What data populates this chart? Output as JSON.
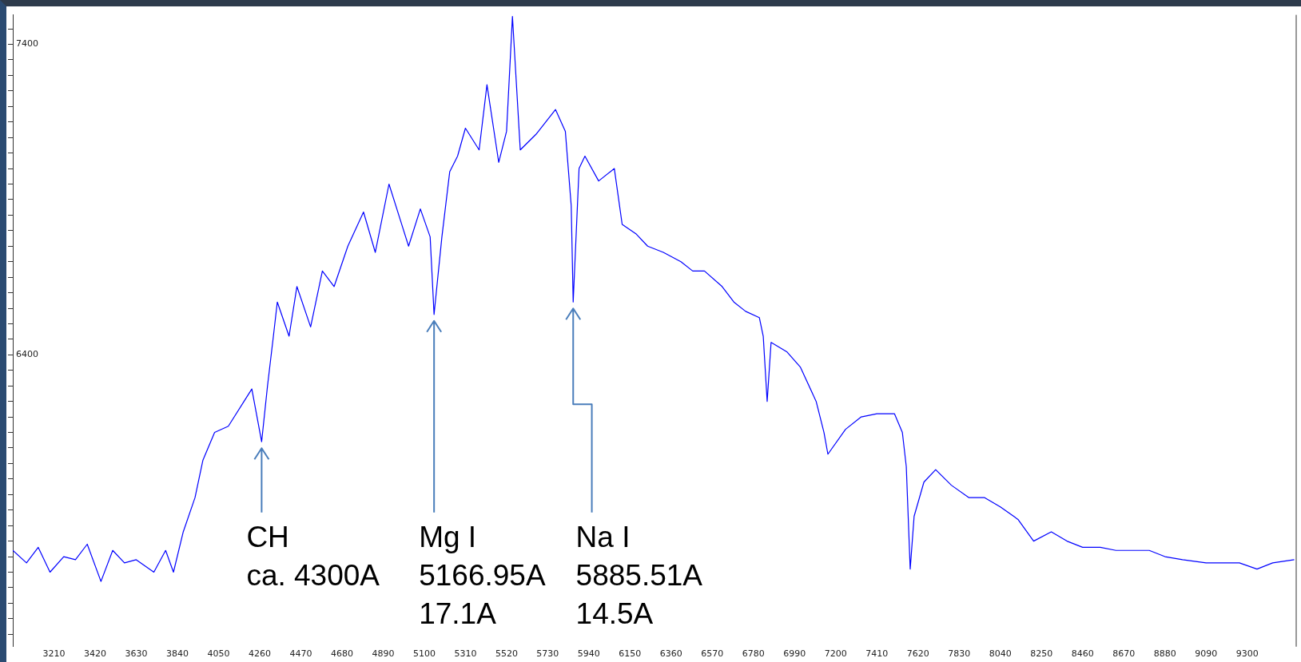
{
  "chart_data": {
    "type": "line",
    "x": [
      3000,
      3070,
      3130,
      3190,
      3260,
      3320,
      3380,
      3450,
      3510,
      3570,
      3630,
      3720,
      3780,
      3820,
      3870,
      3930,
      3970,
      4030,
      4100,
      4180,
      4220,
      4270,
      4300,
      4330,
      4350,
      4410,
      4450,
      4520,
      4580,
      4640,
      4710,
      4790,
      4850,
      4920,
      4980,
      5020,
      5080,
      5130,
      5150,
      5190,
      5230,
      5270,
      5310,
      5380,
      5420,
      5480,
      5520,
      5550,
      5590,
      5670,
      5770,
      5820,
      5850,
      5860,
      5890,
      5920,
      5990,
      6070,
      6110,
      6180,
      6240,
      6320,
      6410,
      6470,
      6530,
      6620,
      6680,
      6740,
      6810,
      6830,
      6850,
      6870,
      6950,
      7020,
      7100,
      7140,
      7160,
      7250,
      7330,
      7410,
      7500,
      7540,
      7560,
      7580,
      7600,
      7650,
      7710,
      7790,
      7880,
      7960,
      8040,
      8130,
      8210,
      8300,
      8380,
      8460,
      8550,
      8630,
      8720,
      8800,
      8880,
      8970,
      9090,
      9180,
      9260,
      9350,
      9430,
      9540
    ],
    "series": [
      {
        "color": "#0000ff",
        "values": [
          5770,
          5730,
          5780,
          5700,
          5750,
          5740,
          5790,
          5670,
          5770,
          5730,
          5740,
          5700,
          5770,
          5700,
          5830,
          5940,
          6060,
          6150,
          6170,
          6250,
          6290,
          6120,
          6300,
          6460,
          6570,
          6460,
          6620,
          6490,
          6670,
          6620,
          6750,
          6860,
          6730,
          6950,
          6830,
          6750,
          6870,
          6780,
          6530,
          6780,
          6990,
          7040,
          7130,
          7060,
          7270,
          7020,
          7120,
          7490,
          7060,
          7110,
          7190,
          7120,
          6880,
          6570,
          7000,
          7040,
          6960,
          7000,
          6820,
          6790,
          6750,
          6730,
          6700,
          6670,
          6670,
          6620,
          6570,
          6540,
          6520,
          6460,
          6250,
          6440,
          6410,
          6360,
          6250,
          6150,
          6080,
          6160,
          6200,
          6210,
          6210,
          6150,
          6040,
          5710,
          5880,
          5990,
          6030,
          5980,
          5940,
          5940,
          5910,
          5870,
          5800,
          5830,
          5800,
          5780,
          5780,
          5770,
          5770,
          5770,
          5750,
          5740,
          5730,
          5730,
          5730,
          5710,
          5730,
          5740
        ]
      }
    ],
    "xlim": [
      3000,
      9550
    ],
    "xticks": [
      3210,
      3420,
      3630,
      3840,
      4050,
      4260,
      4470,
      4680,
      4890,
      5100,
      5310,
      5520,
      5730,
      5940,
      6150,
      6360,
      6570,
      6780,
      6990,
      7200,
      7410,
      7620,
      7830,
      8040,
      8250,
      8460,
      8670,
      8880,
      9090,
      9300
    ],
    "ylim": [
      5460,
      7495
    ],
    "yticks": [
      {
        "value": 5500,
        "label": null
      },
      {
        "value": 5550,
        "label": null
      },
      {
        "value": 5600,
        "label": null
      },
      {
        "value": 5650,
        "label": null
      },
      {
        "value": 5700,
        "label": null
      },
      {
        "value": 5750,
        "label": null
      },
      {
        "value": 5800,
        "label": null
      },
      {
        "value": 5850,
        "label": null
      },
      {
        "value": 5900,
        "label": null
      },
      {
        "value": 5950,
        "label": null
      },
      {
        "value": 6000,
        "label": null
      },
      {
        "value": 6050,
        "label": null
      },
      {
        "value": 6100,
        "label": null
      },
      {
        "value": 6150,
        "label": null
      },
      {
        "value": 6200,
        "label": null
      },
      {
        "value": 6250,
        "label": null
      },
      {
        "value": 6300,
        "label": null
      },
      {
        "value": 6350,
        "label": null
      },
      6400,
      {
        "value": 6450,
        "label": null
      },
      {
        "value": 6500,
        "label": null
      },
      {
        "value": 6550,
        "label": null
      },
      {
        "value": 6600,
        "label": null
      },
      {
        "value": 6650,
        "label": null
      },
      {
        "value": 6700,
        "label": null
      },
      {
        "value": 6750,
        "label": null
      },
      {
        "value": 6800,
        "label": null
      },
      {
        "value": 6850,
        "label": null
      },
      {
        "value": 6900,
        "label": null
      },
      {
        "value": 6950,
        "label": null
      },
      {
        "value": 7000,
        "label": null
      },
      {
        "value": 7050,
        "label": null
      },
      {
        "value": 7100,
        "label": null
      },
      {
        "value": 7150,
        "label": null
      },
      {
        "value": 7200,
        "label": null
      },
      {
        "value": 7250,
        "label": null
      },
      {
        "value": 7300,
        "label": null
      },
      {
        "value": 7350,
        "label": null
      },
      7400,
      {
        "value": 7450,
        "label": null
      }
    ],
    "annotations": [
      {
        "text": "CH\nca. 4300A",
        "x": 4270,
        "y": 6120
      },
      {
        "text": "Mg I\n5166.95A\n17.1A",
        "x": 5150,
        "y": 6530
      },
      {
        "text": "Na I\n5885.51A\n14.5A",
        "x": 5860,
        "y": 6570
      }
    ],
    "grid": false,
    "legend": false,
    "marker": "none",
    "line_style": "solid"
  }
}
